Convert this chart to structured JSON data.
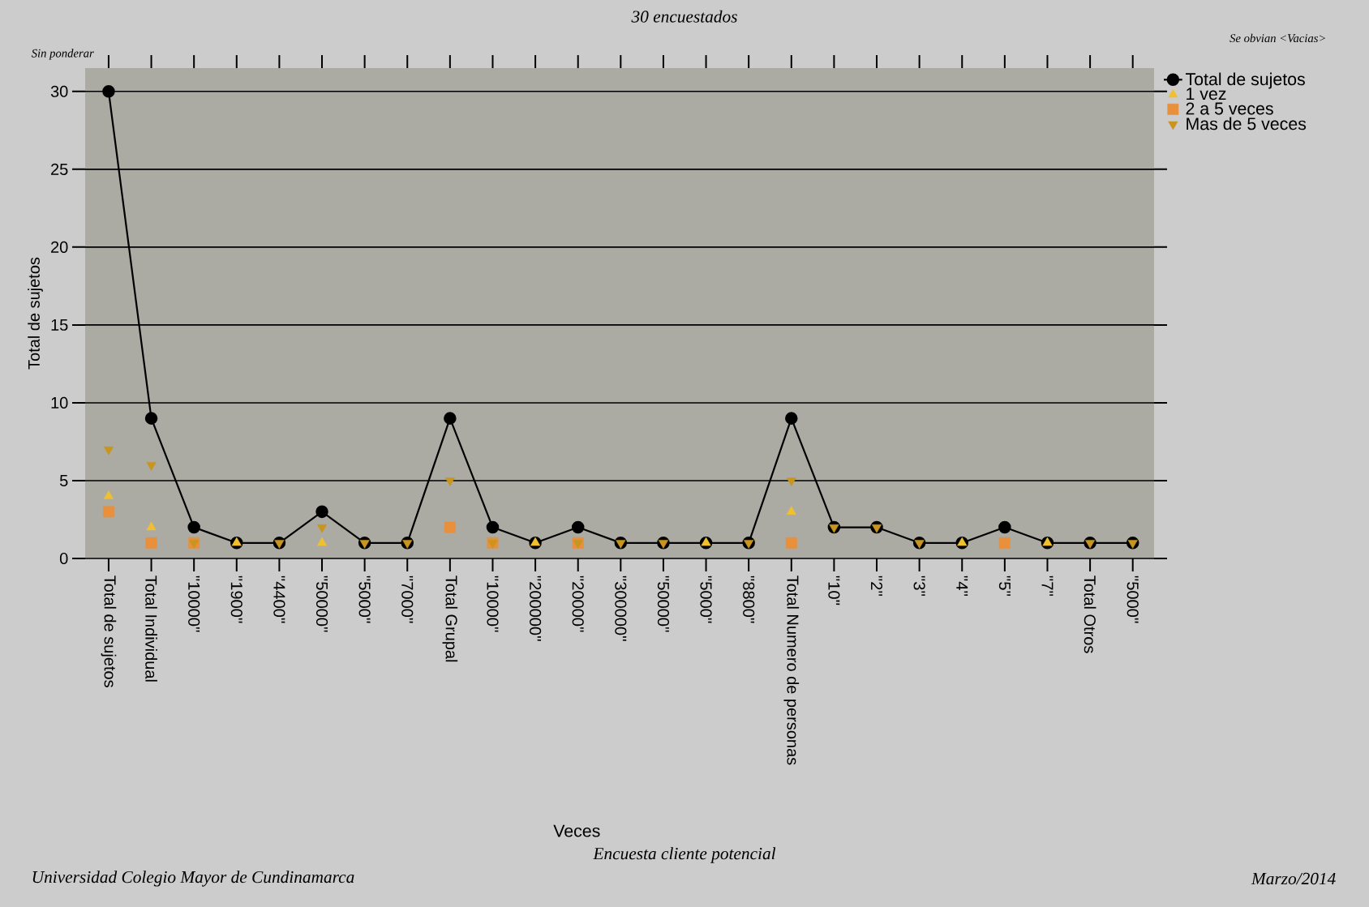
{
  "chart_data": {
    "type": "line",
    "subtitle": "30 encuestados",
    "xlabel": "Veces",
    "ylabel": "Total de sujetos",
    "annotations": [
      "Sin ponderar",
      "Se obvian <Vacias>",
      "Encuesta cliente potencial",
      "Universidad Colegio Mayor de Cundinamarca",
      "Marzo/2014"
    ],
    "categories": [
      "Total de sujetos",
      "Total Individual",
      "''10000''",
      "''1900''",
      "''4400''",
      "''50000''",
      "''5000''",
      "''7000''",
      "Total Grupal",
      "''10000''",
      "''200000''",
      "''20000''",
      "''300000''",
      "''50000''",
      "''5000''",
      "''8800''",
      "Total Numero de personas",
      "''10''",
      "''2''",
      "''3''",
      "''4''",
      "''5''",
      "''7''",
      "Total Otros",
      "''5000''"
    ],
    "series": [
      {
        "name": "Total de sujetos",
        "marker": "circle",
        "color": "#000000",
        "values": [
          30,
          9,
          2,
          1,
          1,
          3,
          1,
          1,
          9,
          2,
          1,
          2,
          1,
          1,
          1,
          1,
          9,
          2,
          2,
          1,
          1,
          2,
          1,
          1,
          1
        ]
      },
      {
        "name": "1 vez",
        "type": "scatter",
        "marker": "triangle",
        "color": "#f0c030",
        "values": [
          4,
          2,
          null,
          1,
          null,
          1,
          null,
          null,
          null,
          null,
          1,
          null,
          null,
          null,
          1,
          null,
          3,
          null,
          null,
          null,
          1,
          null,
          1,
          null,
          null
        ]
      },
      {
        "name": "2 a 5 veces",
        "type": "scatter",
        "marker": "square",
        "color": "#e8903c",
        "values": [
          3,
          1,
          1,
          null,
          null,
          null,
          null,
          null,
          2,
          1,
          null,
          1,
          null,
          null,
          null,
          null,
          1,
          null,
          null,
          null,
          null,
          1,
          null,
          null,
          null
        ]
      },
      {
        "name": "Mas de 5 veces",
        "type": "scatter",
        "marker": "triangle-down",
        "color": "#c8961e",
        "values": [
          7,
          6,
          1,
          null,
          1,
          2,
          1,
          1,
          5,
          1,
          null,
          1,
          1,
          1,
          null,
          1,
          5,
          2,
          2,
          1,
          null,
          null,
          null,
          1,
          1
        ]
      }
    ],
    "ylim": [
      0,
      31.5
    ],
    "yticks": [
      0,
      5,
      10,
      15,
      20,
      25,
      30
    ],
    "grid": "y",
    "legend": "top right"
  }
}
